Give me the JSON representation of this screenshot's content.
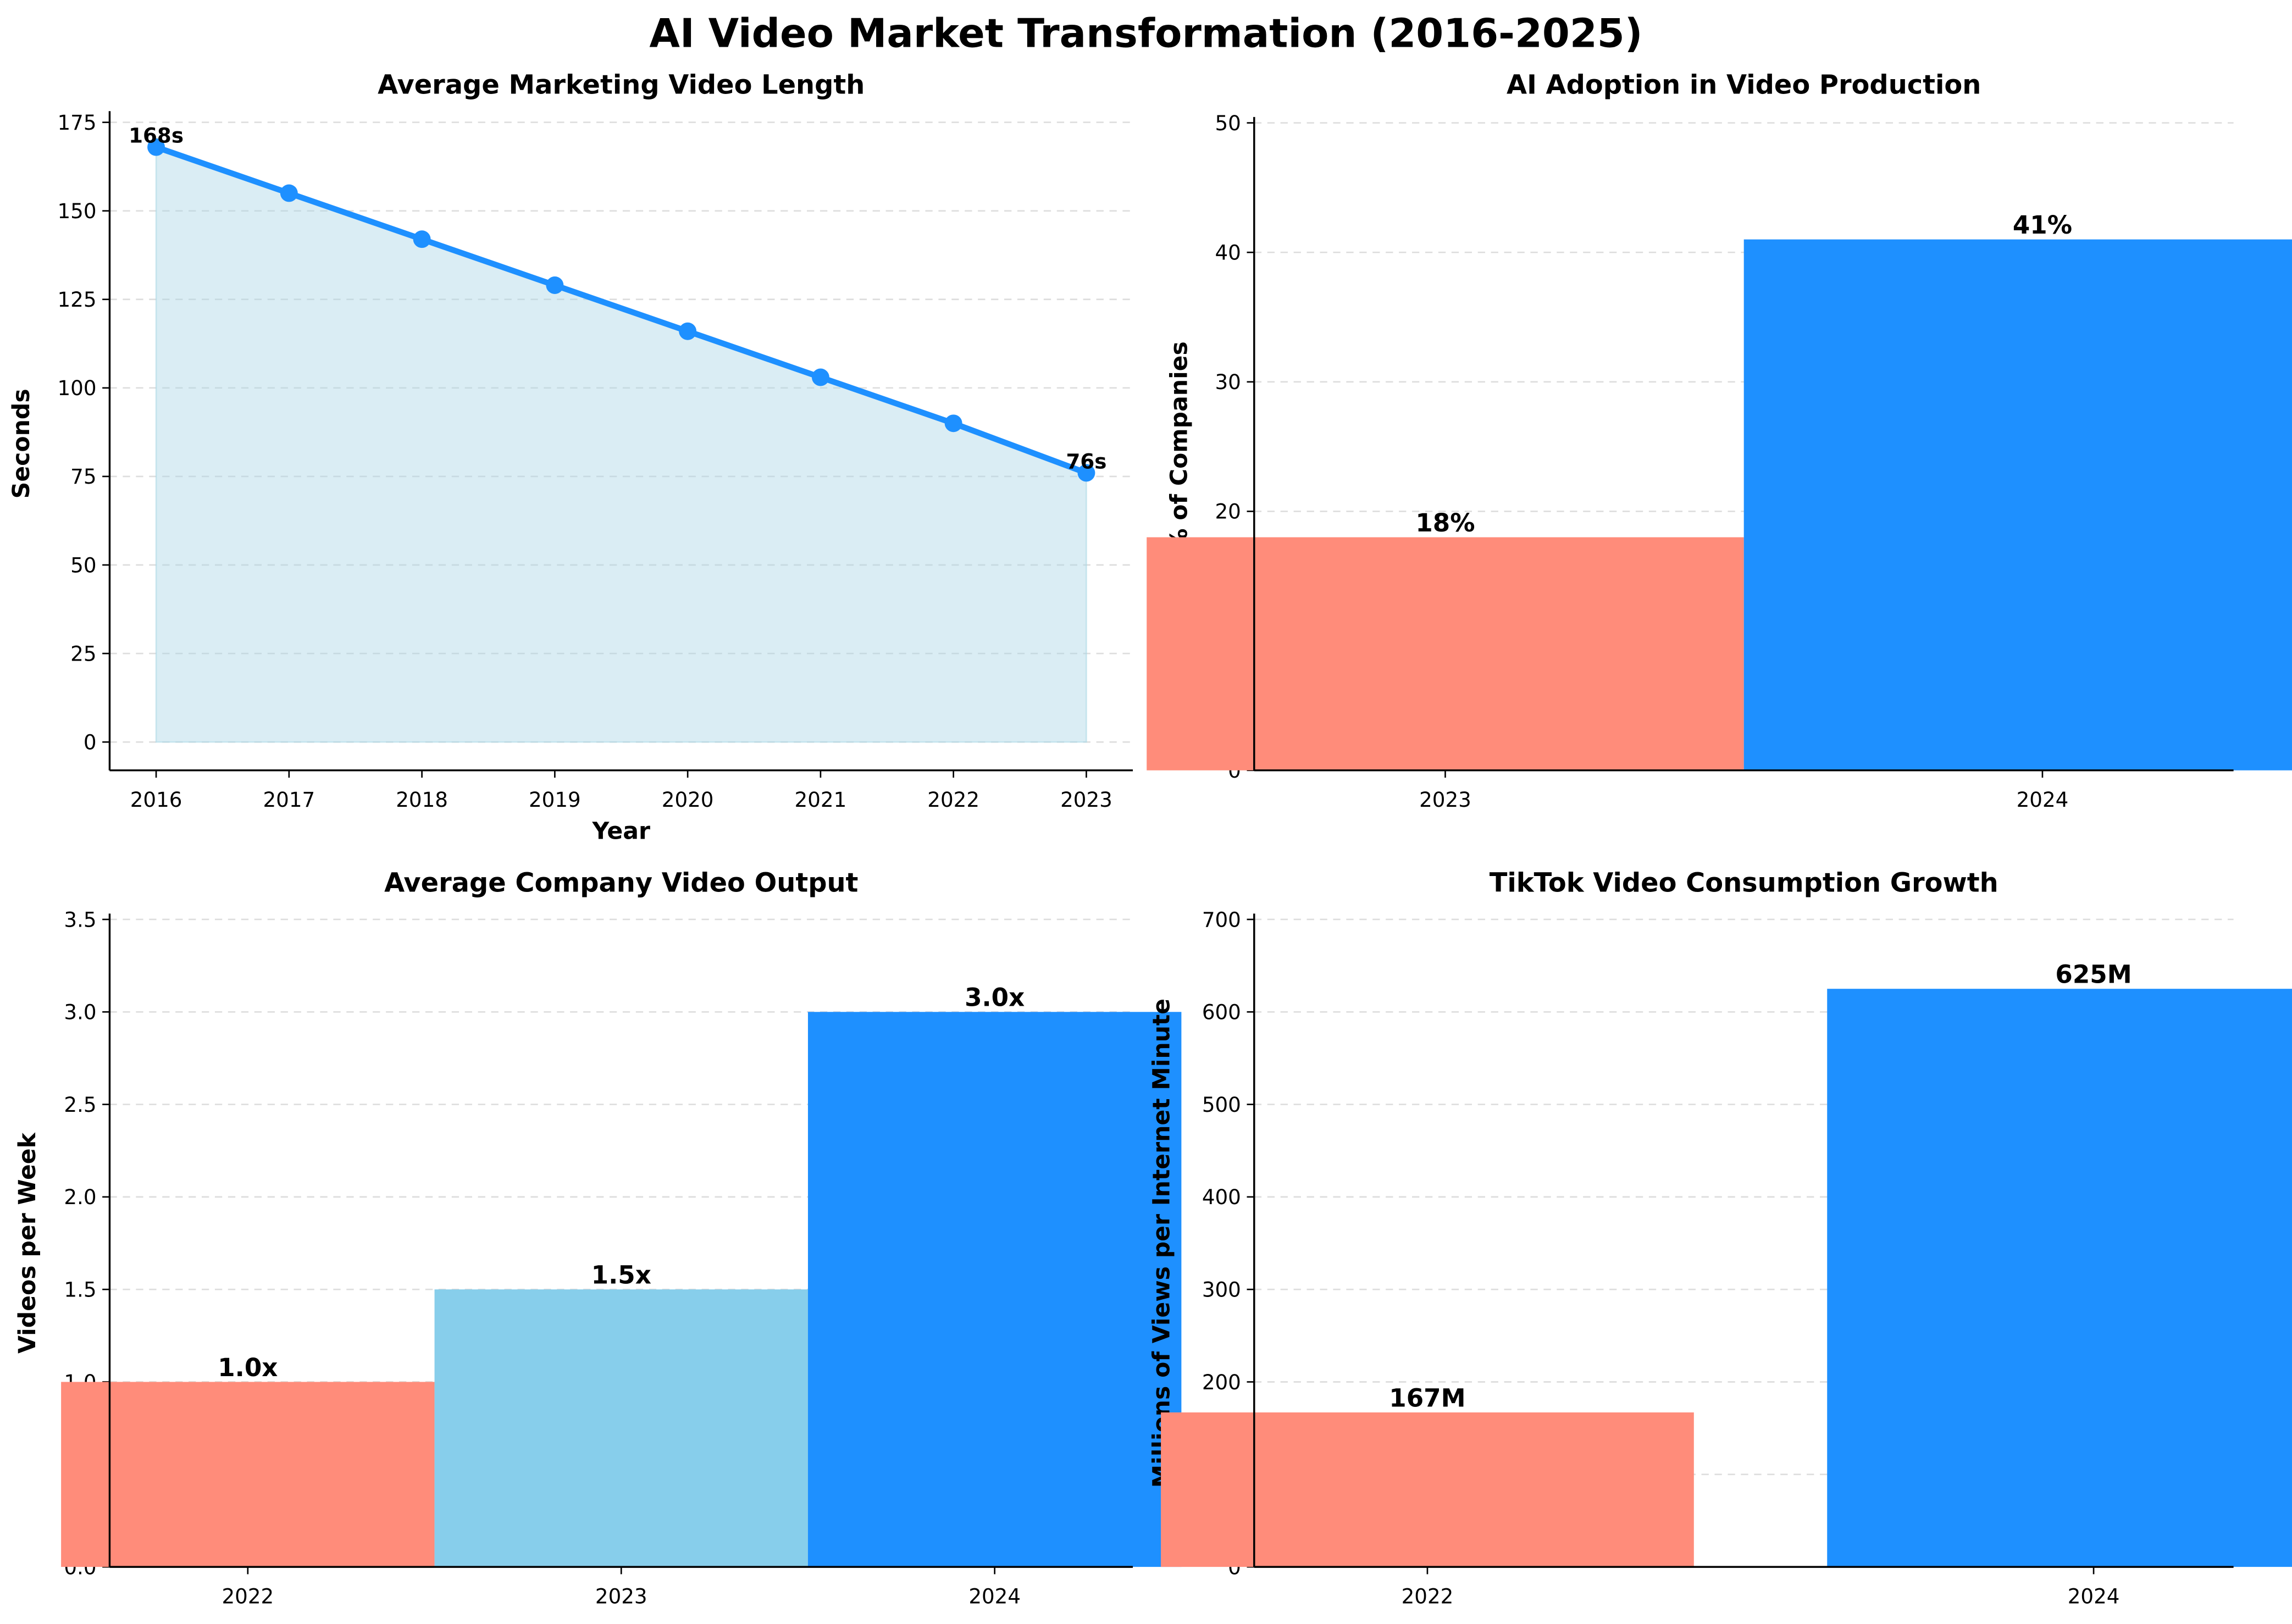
{
  "title": "AI Video Market Transformation (2016-2025)",
  "chart_data": [
    {
      "type": "line",
      "title": "Average Marketing Video Length",
      "xlabel": "Year",
      "ylabel": "Seconds",
      "x": [
        2016,
        2017,
        2018,
        2019,
        2020,
        2021,
        2022,
        2023
      ],
      "values": [
        168,
        155,
        142,
        129,
        116,
        103,
        90,
        76
      ],
      "annotations": [
        "168s",
        "76s"
      ],
      "ylim": [
        -8,
        176.5
      ],
      "yticks": [
        0,
        25,
        50,
        75,
        100,
        125,
        150,
        175
      ],
      "color": "#1E90FF",
      "fill": "#ADD8E6",
      "grid": true
    },
    {
      "type": "bar",
      "title": "AI Adoption in Video Production",
      "xlabel": "",
      "ylabel": "% of Companies",
      "categories": [
        "2023",
        "2024"
      ],
      "values": [
        18,
        41
      ],
      "labels": [
        "18%",
        "41%"
      ],
      "ylim": [
        0,
        50
      ],
      "yticks": [
        0,
        10,
        20,
        30,
        40,
        50
      ],
      "colors": [
        "#FF8C7A",
        "#1E90FF"
      ],
      "grid": true
    },
    {
      "type": "bar",
      "title": "Average Company Video Output",
      "xlabel": "",
      "ylabel": "Videos per Week",
      "categories": [
        "2022",
        "2023",
        "2024"
      ],
      "values": [
        1.0,
        1.5,
        3.0
      ],
      "labels": [
        "1.0x",
        "1.5x",
        "3.0x"
      ],
      "ylim": [
        0,
        3.5
      ],
      "yticks": [
        "0.0",
        "0.5",
        "1.0",
        "1.5",
        "2.0",
        "2.5",
        "3.0",
        "3.5"
      ],
      "colors": [
        "#FF8C7A",
        "#87CEEB",
        "#1E90FF"
      ],
      "grid": true
    },
    {
      "type": "bar",
      "title": "TikTok Video Consumption Growth",
      "xlabel": "",
      "ylabel": "Millions of Views per Internet Minute",
      "categories": [
        "2022",
        "2024"
      ],
      "values": [
        167,
        625
      ],
      "labels": [
        "167M",
        "625M"
      ],
      "ylim": [
        0,
        700
      ],
      "yticks": [
        0,
        100,
        200,
        300,
        400,
        500,
        600,
        700
      ],
      "colors": [
        "#FF8C7A",
        "#1E90FF"
      ],
      "grid": true
    }
  ]
}
